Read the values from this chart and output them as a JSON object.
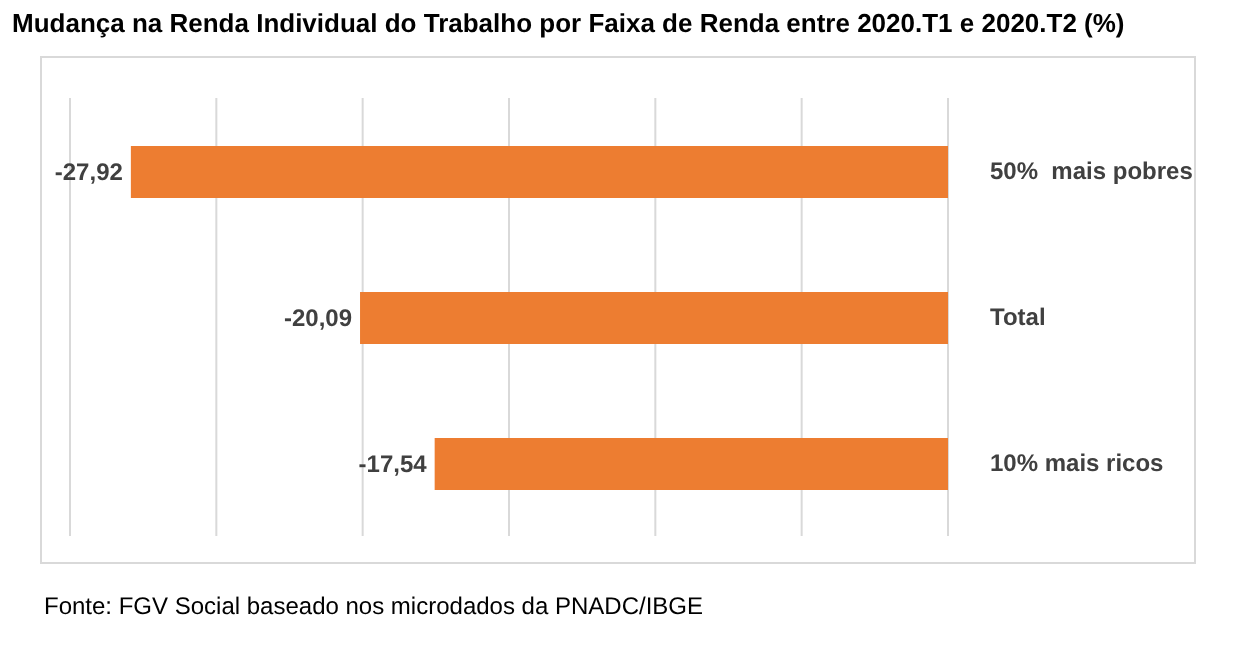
{
  "chart_data": {
    "type": "bar",
    "orientation": "horizontal",
    "title": "Mudança na Renda Individual do Trabalho por Faixa de Renda entre 2020.T1 e 2020.T2 (%)",
    "categories": [
      "50%  mais pobres",
      "Total",
      "10% mais ricos"
    ],
    "values": [
      -27.92,
      -20.09,
      -17.54
    ],
    "color": "#ed7d31",
    "value_labels": [
      "-27,92",
      "-20,09",
      "-17,54"
    ],
    "xlim": [
      -30,
      0
    ],
    "xticks": [
      {
        "value": -30,
        "label": null
      },
      {
        "value": -25,
        "label": null
      },
      {
        "value": -20,
        "label": null
      },
      {
        "value": -15,
        "label": null
      },
      {
        "value": -10,
        "label": null
      },
      {
        "value": -5,
        "label": null
      },
      {
        "value": 0,
        "label": null
      }
    ],
    "grid": "x",
    "tick_labels": "y",
    "legend": false,
    "annotations": [
      "Fonte: FGV Social baseado nos microdados da PNADC/IBGE"
    ]
  }
}
